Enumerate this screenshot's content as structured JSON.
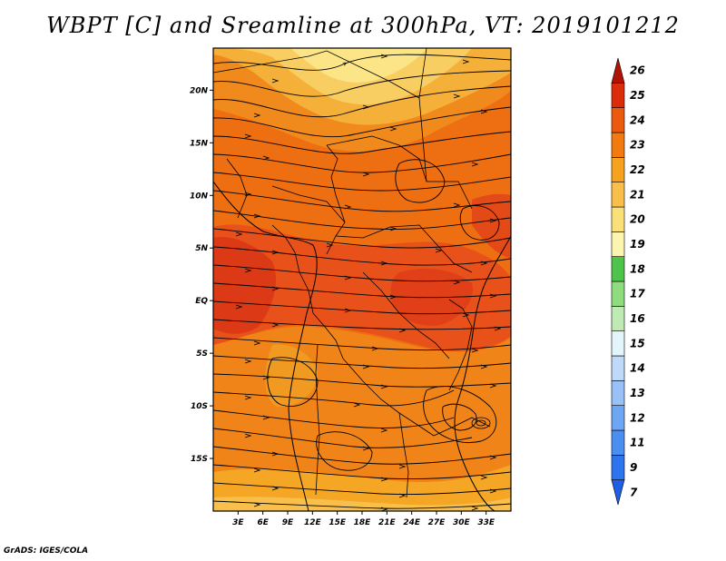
{
  "title": "WBPT [C] and Sreamline at 300hPa, VT: 2019101212",
  "credit": "GrADS: IGES/COLA",
  "map": {
    "lon_range": [
      0,
      36
    ],
    "lat_range": [
      -20,
      24
    ],
    "lat_ticks": [
      {
        "value": 20,
        "label": "20N"
      },
      {
        "value": 15,
        "label": "15N"
      },
      {
        "value": 10,
        "label": "10N"
      },
      {
        "value": 5,
        "label": "5N"
      },
      {
        "value": 0,
        "label": "EQ"
      },
      {
        "value": -5,
        "label": "5S"
      },
      {
        "value": -10,
        "label": "10S"
      },
      {
        "value": -15,
        "label": "15S"
      }
    ],
    "lon_ticks": [
      {
        "value": 3,
        "label": "3E"
      },
      {
        "value": 6,
        "label": "6E"
      },
      {
        "value": 9,
        "label": "9E"
      },
      {
        "value": 12,
        "label": "12E"
      },
      {
        "value": 15,
        "label": "15E"
      },
      {
        "value": 18,
        "label": "18E"
      },
      {
        "value": 21,
        "label": "21E"
      },
      {
        "value": 24,
        "label": "24E"
      },
      {
        "value": 27,
        "label": "27E"
      },
      {
        "value": 30,
        "label": "30E"
      },
      {
        "value": 33,
        "label": "33E"
      }
    ]
  },
  "colorbar": {
    "labels": [
      "7",
      "9",
      "11",
      "12",
      "13",
      "14",
      "15",
      "16",
      "17",
      "18",
      "19",
      "20",
      "21",
      "22",
      "23",
      "24",
      "25",
      "26"
    ],
    "colors": [
      "#1c5ee6",
      "#2f74ef",
      "#4a8ef2",
      "#6ea6f4",
      "#98c2f7",
      "#bfdaf9",
      "#e4f4fb",
      "#bfeab3",
      "#8fdc7f",
      "#4fc44a",
      "#fbf5b0",
      "#fbe07a",
      "#f8c04a",
      "#f6a21f",
      "#f27a0f",
      "#ec5a10",
      "#dc2c0b",
      "#b01206"
    ]
  }
}
